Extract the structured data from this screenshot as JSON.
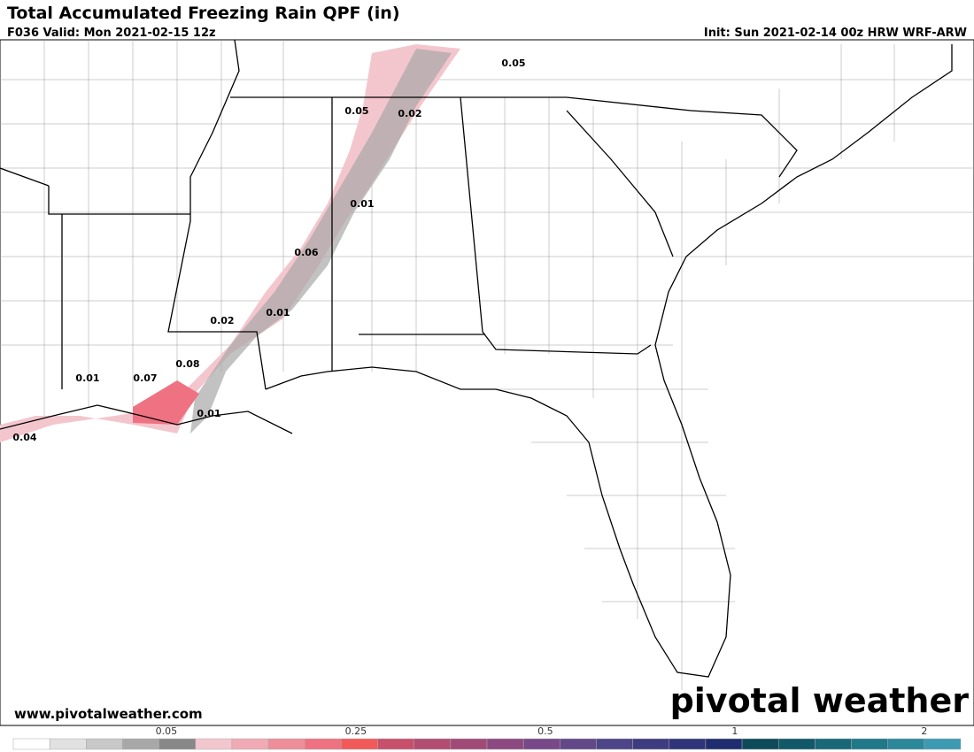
{
  "header": {
    "title": "Total Accumulated Freezing Rain QPF (in)",
    "valid": "F036 Valid: Mon 2021-02-15 12z",
    "init": "Init: Sun 2021-02-14 00z HRW WRF-ARW"
  },
  "map": {
    "labels": [
      "0.05",
      "0.05",
      "0.02",
      "0.01",
      "0.06",
      "0.01",
      "0.02",
      "0.08",
      "0.07",
      "0.01",
      "0.01",
      "0.04"
    ]
  },
  "footer": {
    "website": "www.pivotalweather.com",
    "logo": "pivotal weather"
  },
  "colorbar": {
    "ticks": [
      "0.05",
      "0.25",
      "0.5",
      "1",
      "2"
    ],
    "colors": [
      "#ffffff",
      "#e1e1e1",
      "#c8c8c8",
      "#a8a8a8",
      "#888888",
      "#f3c6cd",
      "#f1aab5",
      "#ee8e9a",
      "#ee7282",
      "#f25a5a",
      "#c8506a",
      "#b24c70",
      "#a04a78",
      "#8c4880",
      "#784888",
      "#624888",
      "#4e4488",
      "#3e3c80",
      "#30347a",
      "#202c70",
      "#0d4a5a",
      "#115868",
      "#186878",
      "#207888",
      "#2a889a",
      "#3c9ab2"
    ]
  }
}
